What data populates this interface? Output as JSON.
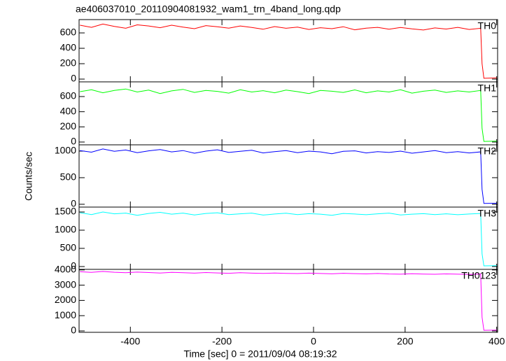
{
  "chart_data": [
    {
      "type": "line",
      "title": "ae406037010_20110904081932_wam1_trn_4band_long.qdp",
      "x": [
        -510,
        -485,
        -460,
        -435,
        -410,
        -385,
        -360,
        -335,
        -310,
        -285,
        -260,
        -235,
        -210,
        -185,
        -160,
        -135,
        -110,
        -85,
        -60,
        -35,
        -10,
        15,
        40,
        65,
        90,
        115,
        140,
        165,
        190,
        215,
        240,
        265,
        290,
        315,
        340,
        365,
        368,
        372,
        400
      ],
      "series": [
        {
          "name": "TH0",
          "color": "#ff0000",
          "values": [
            700,
            672,
            715,
            685,
            660,
            705,
            690,
            668,
            700,
            676,
            655,
            695,
            680,
            662,
            690,
            670,
            648,
            682,
            660,
            675,
            645,
            668,
            655,
            680,
            640,
            662,
            672,
            648,
            670,
            652,
            638,
            665,
            650,
            672,
            645,
            660,
            200,
            10,
            15
          ]
        }
      ],
      "xlim": [
        -512,
        402
      ],
      "xticks": [
        -400,
        -200,
        0,
        200,
        400
      ],
      "ylim": [
        -36,
        773
      ],
      "yticks": [
        0,
        200,
        400,
        600
      ]
    },
    {
      "type": "line",
      "x": [
        -510,
        -485,
        -460,
        -435,
        -410,
        -385,
        -360,
        -335,
        -310,
        -285,
        -260,
        -235,
        -210,
        -185,
        -160,
        -135,
        -110,
        -85,
        -60,
        -35,
        -10,
        15,
        40,
        65,
        90,
        115,
        140,
        165,
        190,
        215,
        240,
        265,
        290,
        315,
        340,
        365,
        368,
        372,
        400
      ],
      "series": [
        {
          "name": "TH1",
          "color": "#00ff00",
          "values": [
            665,
            690,
            650,
            680,
            700,
            660,
            685,
            640,
            675,
            695,
            655,
            680,
            668,
            645,
            690,
            660,
            678,
            650,
            685,
            665,
            640,
            680,
            670,
            655,
            688,
            650,
            675,
            660,
            690,
            645,
            670,
            685,
            655,
            675,
            660,
            680,
            180,
            8,
            12
          ]
        }
      ],
      "xlim": [
        -512,
        402
      ],
      "xticks": [
        -400,
        -200,
        0,
        200,
        400
      ],
      "ylim": [
        -37,
        794
      ],
      "yticks": [
        0,
        200,
        400,
        600
      ]
    },
    {
      "type": "line",
      "ylabel": "Counts/sec",
      "x": [
        -510,
        -485,
        -460,
        -435,
        -410,
        -385,
        -360,
        -335,
        -310,
        -285,
        -260,
        -235,
        -210,
        -185,
        -160,
        -135,
        -110,
        -85,
        -60,
        -35,
        -10,
        15,
        40,
        65,
        90,
        115,
        140,
        165,
        190,
        215,
        240,
        265,
        290,
        315,
        340,
        365,
        368,
        372,
        400
      ],
      "series": [
        {
          "name": "TH2",
          "color": "#0000ff",
          "values": [
            1010,
            980,
            1040,
            995,
            1020,
            970,
            1005,
            1030,
            985,
            1010,
            960,
            1000,
            1025,
            975,
            995,
            1015,
            965,
            990,
            1010,
            970,
            1000,
            985,
            950,
            995,
            1005,
            965,
            990,
            975,
            1000,
            960,
            985,
            1010,
            970,
            990,
            965,
            985,
            280,
            15,
            20
          ]
        }
      ],
      "xlim": [
        -512,
        402
      ],
      "xticks": [
        -400,
        -200,
        0,
        200,
        400
      ],
      "ylim": [
        -53,
        1118
      ],
      "yticks": [
        0,
        500,
        1000
      ]
    },
    {
      "type": "line",
      "x": [
        -510,
        -485,
        -460,
        -435,
        -410,
        -385,
        -360,
        -335,
        -310,
        -285,
        -260,
        -235,
        -210,
        -185,
        -160,
        -135,
        -110,
        -85,
        -60,
        -35,
        -10,
        15,
        40,
        65,
        90,
        115,
        140,
        165,
        190,
        215,
        240,
        265,
        290,
        315,
        340,
        365,
        368,
        372,
        400
      ],
      "series": [
        {
          "name": "TH3",
          "color": "#00ffff",
          "values": [
            1480,
            1430,
            1500,
            1450,
            1470,
            1410,
            1460,
            1490,
            1440,
            1470,
            1420,
            1460,
            1480,
            1430,
            1450,
            1470,
            1415,
            1445,
            1465,
            1430,
            1455,
            1440,
            1410,
            1460,
            1445,
            1425,
            1450,
            1470,
            1420,
            1440,
            1455,
            1430,
            1450,
            1425,
            1445,
            1460,
            350,
            20,
            25
          ]
        }
      ],
      "xlim": [
        -512,
        402
      ],
      "xticks": [
        -400,
        -200,
        0,
        200,
        400
      ],
      "ylim": [
        -77,
        1635
      ],
      "yticks": [
        0,
        500,
        1000,
        1500
      ]
    },
    {
      "type": "line",
      "xlabel": "Time [sec] 0 = 2011/09/04 08:19:32",
      "x": [
        -510,
        -485,
        -460,
        -435,
        -410,
        -385,
        -360,
        -335,
        -310,
        -285,
        -260,
        -235,
        -210,
        -185,
        -160,
        -135,
        -110,
        -85,
        -60,
        -35,
        -10,
        15,
        40,
        65,
        90,
        115,
        140,
        165,
        190,
        215,
        240,
        265,
        290,
        315,
        340,
        365,
        368,
        372,
        400
      ],
      "series": [
        {
          "name": "TH0123",
          "color": "#ff00ff",
          "values": [
            3880,
            3840,
            3900,
            3850,
            3820,
            3860,
            3830,
            3800,
            3845,
            3815,
            3790,
            3830,
            3805,
            3780,
            3815,
            3790,
            3770,
            3800,
            3775,
            3760,
            3790,
            3765,
            3745,
            3780,
            3755,
            3740,
            3765,
            3735,
            3720,
            3750,
            3730,
            3715,
            3740,
            3720,
            3705,
            3730,
            900,
            40,
            50
          ]
        }
      ],
      "xlim": [
        -512,
        402
      ],
      "xticks": [
        -400,
        -200,
        0,
        200,
        400
      ],
      "ylim": [
        -92,
        4037
      ],
      "yticks": [
        0,
        1000,
        2000,
        3000,
        4000
      ]
    }
  ]
}
